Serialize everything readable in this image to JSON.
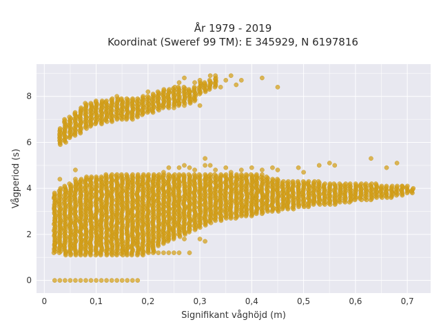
{
  "chart_data": {
    "type": "scatter",
    "title": "År 1979 - 2019",
    "subtitle": "Koordinat (Sweref 99 TM): E 345929, N 6197816",
    "xlabel": "Signifikant våghöjd (m)",
    "ylabel": "Vågperiod (s)",
    "xlim": [
      -0.015,
      0.745
    ],
    "ylim": [
      -0.55,
      9.4
    ],
    "x_ticks": [
      0,
      0.1,
      0.2,
      0.3,
      0.4,
      0.5,
      0.6,
      0.7
    ],
    "x_tick_labels": [
      "0",
      "0,1",
      "0,2",
      "0,3",
      "0,4",
      "0,5",
      "0,6",
      "0,7"
    ],
    "y_ticks": [
      0,
      2,
      4,
      6,
      8
    ],
    "y_tick_labels": [
      "0",
      "2",
      "4",
      "6",
      "8"
    ],
    "grid": true,
    "marker_color": "#d4a017",
    "background_color": "#e8e8f0",
    "series": [
      {
        "columns": [
          [
            0.02,
            1.2,
            3.8
          ],
          [
            0.03,
            1.2,
            4.0
          ],
          [
            0.04,
            1.1,
            4.1
          ],
          [
            0.05,
            1.1,
            4.2
          ],
          [
            0.06,
            1.1,
            4.3
          ],
          [
            0.07,
            1.1,
            4.4
          ],
          [
            0.08,
            1.1,
            4.5
          ],
          [
            0.09,
            1.1,
            4.5
          ],
          [
            0.1,
            1.1,
            4.5
          ],
          [
            0.11,
            1.1,
            4.5
          ],
          [
            0.12,
            1.1,
            4.6
          ],
          [
            0.13,
            1.1,
            4.6
          ],
          [
            0.14,
            1.1,
            4.6
          ],
          [
            0.15,
            1.1,
            4.6
          ],
          [
            0.16,
            1.1,
            4.6
          ],
          [
            0.17,
            1.1,
            4.6
          ],
          [
            0.18,
            1.1,
            4.6
          ],
          [
            0.19,
            1.1,
            4.6
          ],
          [
            0.2,
            1.2,
            4.6
          ],
          [
            0.21,
            1.2,
            4.6
          ],
          [
            0.22,
            1.5,
            4.6
          ],
          [
            0.23,
            1.6,
            4.6
          ],
          [
            0.24,
            1.7,
            4.6
          ],
          [
            0.25,
            1.8,
            4.6
          ],
          [
            0.26,
            1.9,
            4.6
          ],
          [
            0.27,
            2.0,
            4.6
          ],
          [
            0.28,
            2.1,
            4.6
          ],
          [
            0.29,
            2.2,
            4.6
          ],
          [
            0.3,
            2.3,
            4.6
          ],
          [
            0.31,
            2.4,
            4.6
          ],
          [
            0.32,
            2.5,
            4.6
          ],
          [
            0.33,
            2.6,
            4.6
          ],
          [
            0.34,
            2.6,
            4.6
          ],
          [
            0.35,
            2.7,
            4.6
          ],
          [
            0.36,
            2.7,
            4.6
          ],
          [
            0.37,
            2.7,
            4.6
          ],
          [
            0.38,
            2.8,
            4.6
          ],
          [
            0.39,
            2.8,
            4.6
          ],
          [
            0.4,
            2.8,
            4.6
          ],
          [
            0.41,
            2.9,
            4.6
          ],
          [
            0.42,
            2.9,
            4.5
          ],
          [
            0.43,
            3.0,
            4.5
          ],
          [
            0.44,
            3.0,
            4.4
          ],
          [
            0.45,
            3.0,
            4.4
          ],
          [
            0.46,
            3.1,
            4.3
          ],
          [
            0.47,
            3.1,
            4.3
          ],
          [
            0.48,
            3.1,
            4.3
          ],
          [
            0.49,
            3.2,
            4.3
          ],
          [
            0.5,
            3.2,
            4.3
          ],
          [
            0.51,
            3.2,
            4.3
          ],
          [
            0.52,
            3.3,
            4.3
          ],
          [
            0.53,
            3.3,
            4.3
          ],
          [
            0.54,
            3.3,
            4.2
          ],
          [
            0.55,
            3.3,
            4.2
          ],
          [
            0.56,
            3.3,
            4.2
          ],
          [
            0.57,
            3.4,
            4.2
          ],
          [
            0.58,
            3.4,
            4.2
          ],
          [
            0.59,
            3.4,
            4.2
          ],
          [
            0.6,
            3.5,
            4.2
          ],
          [
            0.61,
            3.5,
            4.2
          ],
          [
            0.62,
            3.5,
            4.2
          ],
          [
            0.63,
            3.5,
            4.2
          ],
          [
            0.64,
            3.6,
            4.2
          ],
          [
            0.65,
            3.6,
            4.1
          ],
          [
            0.66,
            3.6,
            4.1
          ],
          [
            0.67,
            3.6,
            4.1
          ],
          [
            0.68,
            3.7,
            4.1
          ],
          [
            0.69,
            3.7,
            4.1
          ],
          [
            0.7,
            3.8,
            4.1
          ],
          [
            0.71,
            3.8,
            4.0
          ]
        ],
        "swell_columns": [
          [
            0.03,
            5.9,
            6.6
          ],
          [
            0.04,
            6.0,
            7.0
          ],
          [
            0.05,
            6.2,
            7.1
          ],
          [
            0.06,
            6.3,
            7.3
          ],
          [
            0.07,
            6.4,
            7.5
          ],
          [
            0.08,
            6.6,
            7.7
          ],
          [
            0.09,
            6.7,
            7.7
          ],
          [
            0.1,
            6.8,
            7.8
          ],
          [
            0.11,
            6.8,
            7.8
          ],
          [
            0.12,
            6.9,
            7.8
          ],
          [
            0.13,
            6.9,
            7.9
          ],
          [
            0.14,
            7.0,
            7.9
          ],
          [
            0.15,
            7.0,
            7.9
          ],
          [
            0.16,
            7.0,
            7.9
          ],
          [
            0.17,
            7.0,
            7.9
          ],
          [
            0.18,
            7.1,
            7.9
          ],
          [
            0.19,
            7.2,
            8.0
          ],
          [
            0.2,
            7.3,
            8.0
          ],
          [
            0.21,
            7.3,
            8.1
          ],
          [
            0.22,
            7.4,
            8.2
          ],
          [
            0.23,
            7.5,
            8.3
          ],
          [
            0.24,
            7.5,
            8.3
          ],
          [
            0.25,
            7.6,
            8.4
          ],
          [
            0.26,
            7.6,
            8.4
          ],
          [
            0.27,
            7.7,
            8.4
          ],
          [
            0.28,
            7.7,
            8.3
          ],
          [
            0.29,
            7.8,
            8.4
          ],
          [
            0.3,
            8.1,
            8.6
          ],
          [
            0.31,
            8.2,
            8.6
          ],
          [
            0.32,
            8.3,
            8.7
          ],
          [
            0.33,
            8.4,
            8.8
          ]
        ],
        "zero_period_points": [
          0.02,
          0.03,
          0.04,
          0.05,
          0.06,
          0.07,
          0.08,
          0.09,
          0.1,
          0.11,
          0.12,
          0.13,
          0.14,
          0.15,
          0.16,
          0.17,
          0.18
        ],
        "scattered_points": [
          [
            0.02,
            3.6
          ],
          [
            0.02,
            2.6
          ],
          [
            0.02,
            1.6
          ],
          [
            0.03,
            4.4
          ],
          [
            0.04,
            3.9
          ],
          [
            0.06,
            4.8
          ],
          [
            0.06,
            4.4
          ],
          [
            0.16,
            4.1
          ],
          [
            0.17,
            4.3
          ],
          [
            0.19,
            4.2
          ],
          [
            0.21,
            4.3
          ],
          [
            0.23,
            4.7
          ],
          [
            0.24,
            4.9
          ],
          [
            0.26,
            4.9
          ],
          [
            0.27,
            5.0
          ],
          [
            0.28,
            4.9
          ],
          [
            0.29,
            4.8
          ],
          [
            0.31,
            5.3
          ],
          [
            0.32,
            5.0
          ],
          [
            0.33,
            4.8
          ],
          [
            0.35,
            4.9
          ],
          [
            0.36,
            4.7
          ],
          [
            0.38,
            4.8
          ],
          [
            0.4,
            4.9
          ],
          [
            0.42,
            4.6
          ],
          [
            0.44,
            4.9
          ],
          [
            0.45,
            4.8
          ],
          [
            0.49,
            4.9
          ],
          [
            0.5,
            4.7
          ],
          [
            0.53,
            5.0
          ],
          [
            0.55,
            5.1
          ],
          [
            0.56,
            5.0
          ],
          [
            0.63,
            5.3
          ],
          [
            0.66,
            4.9
          ],
          [
            0.68,
            5.1
          ],
          [
            0.69,
            4.1
          ],
          [
            0.28,
            1.2
          ],
          [
            0.3,
            1.8
          ],
          [
            0.31,
            1.7
          ],
          [
            0.27,
            1.8
          ],
          [
            0.26,
            1.2
          ],
          [
            0.25,
            1.2
          ],
          [
            0.24,
            1.2
          ],
          [
            0.23,
            1.2
          ],
          [
            0.22,
            1.2
          ],
          [
            0.31,
            5.0
          ],
          [
            0.42,
            4.8
          ],
          [
            0.26,
            8.6
          ],
          [
            0.27,
            8.8
          ],
          [
            0.28,
            8.2
          ],
          [
            0.29,
            8.6
          ],
          [
            0.3,
            8.7
          ],
          [
            0.32,
            8.9
          ],
          [
            0.33,
            8.9
          ],
          [
            0.34,
            8.4
          ],
          [
            0.35,
            8.7
          ],
          [
            0.36,
            8.9
          ],
          [
            0.37,
            8.5
          ],
          [
            0.38,
            8.7
          ],
          [
            0.42,
            8.8
          ],
          [
            0.45,
            8.4
          ],
          [
            0.3,
            7.6
          ],
          [
            0.27,
            7.6
          ],
          [
            0.26,
            7.7
          ],
          [
            0.25,
            7.5
          ],
          [
            0.2,
            8.2
          ],
          [
            0.14,
            8.0
          ]
        ]
      }
    ]
  }
}
